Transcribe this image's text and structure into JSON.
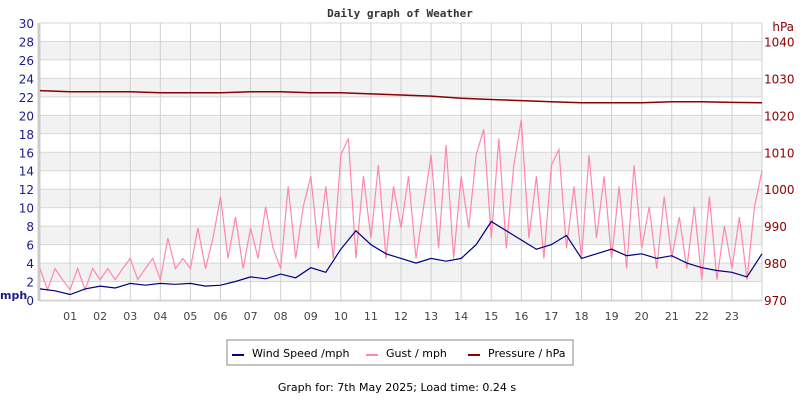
{
  "chart_data": {
    "type": "line",
    "title": "Daily graph of Weather",
    "left_axis": {
      "label": "mph",
      "ylim": [
        0,
        30
      ],
      "ticks": [
        0,
        2,
        4,
        6,
        8,
        10,
        12,
        14,
        16,
        18,
        20,
        22,
        24,
        26,
        28,
        30
      ],
      "color": "#1a1a8c"
    },
    "right_axis": {
      "label": "hPa",
      "ylim": [
        970,
        1045
      ],
      "ticks": [
        970,
        980,
        990,
        1000,
        1010,
        1020,
        1030,
        1040
      ],
      "color": "#8b0000"
    },
    "x_axis": {
      "xlim": [
        0,
        24
      ],
      "ticks": [
        "01",
        "02",
        "03",
        "04",
        "05",
        "06",
        "07",
        "08",
        "09",
        "10",
        "11",
        "12",
        "13",
        "14",
        "15",
        "16",
        "17",
        "18",
        "19",
        "20",
        "21",
        "22",
        "23"
      ],
      "unit": "hour"
    },
    "grid": true,
    "legend_position": "bottom",
    "series": [
      {
        "name": "Wind Speed /mph",
        "color": "#000080",
        "axis": "left",
        "x_step_hours": 0.5,
        "values": [
          1.2,
          1.0,
          0.6,
          1.2,
          1.5,
          1.3,
          1.8,
          1.6,
          1.8,
          1.7,
          1.8,
          1.5,
          1.6,
          2.0,
          2.5,
          2.3,
          2.8,
          2.4,
          3.5,
          3.0,
          5.5,
          7.5,
          6.0,
          5.0,
          4.5,
          4.0,
          4.5,
          4.2,
          4.5,
          6.0,
          8.5,
          7.5,
          6.5,
          5.5,
          6.0,
          7.0,
          4.5,
          5.0,
          5.5,
          4.8,
          5.0,
          4.5,
          4.8,
          4.0,
          3.5,
          3.2,
          3.0,
          2.5,
          5.0
        ]
      },
      {
        "name": "Gust / mph",
        "color": "#ff88aa",
        "axis": "left",
        "x_step_hours": 0.25,
        "values": [
          3.4,
          1.1,
          3.4,
          2.2,
          1.1,
          3.4,
          1.1,
          3.4,
          2.2,
          3.4,
          2.2,
          3.4,
          4.5,
          2.2,
          3.4,
          4.5,
          2.2,
          6.7,
          3.4,
          4.5,
          3.4,
          7.8,
          3.4,
          6.7,
          11.2,
          4.5,
          9.0,
          3.4,
          7.8,
          4.5,
          10.1,
          5.6,
          3.4,
          12.3,
          4.5,
          10.1,
          13.4,
          5.6,
          12.3,
          4.5,
          15.7,
          17.5,
          4.5,
          13.4,
          6.7,
          14.6,
          4.5,
          12.3,
          7.8,
          13.4,
          4.5,
          10.1,
          15.7,
          5.6,
          16.8,
          4.5,
          13.4,
          7.8,
          15.7,
          18.5,
          6.7,
          17.5,
          5.6,
          14.6,
          19.5,
          6.7,
          13.4,
          4.5,
          14.6,
          16.3,
          5.6,
          12.3,
          4.5,
          15.7,
          6.7,
          13.4,
          4.5,
          12.3,
          3.4,
          14.6,
          5.6,
          10.1,
          3.4,
          11.2,
          4.5,
          9.0,
          3.4,
          10.1,
          2.2,
          11.2,
          2.2,
          8.0,
          3.4,
          9.0,
          2.2,
          10.1,
          14.0
        ]
      },
      {
        "name": "Pressure / hPa",
        "color": "#8b0000",
        "axis": "right",
        "x_step_hours": 1,
        "values": [
          1026.7,
          1026.4,
          1026.4,
          1026.4,
          1026.1,
          1026.1,
          1026.1,
          1026.4,
          1026.4,
          1026.1,
          1026.1,
          1025.8,
          1025.5,
          1025.2,
          1024.6,
          1024.3,
          1024.0,
          1023.7,
          1023.4,
          1023.4,
          1023.4,
          1023.7,
          1023.7,
          1023.5,
          1023.4
        ]
      }
    ]
  },
  "footer": "Graph for: 7th May 2025; Load time: 0.24 s"
}
